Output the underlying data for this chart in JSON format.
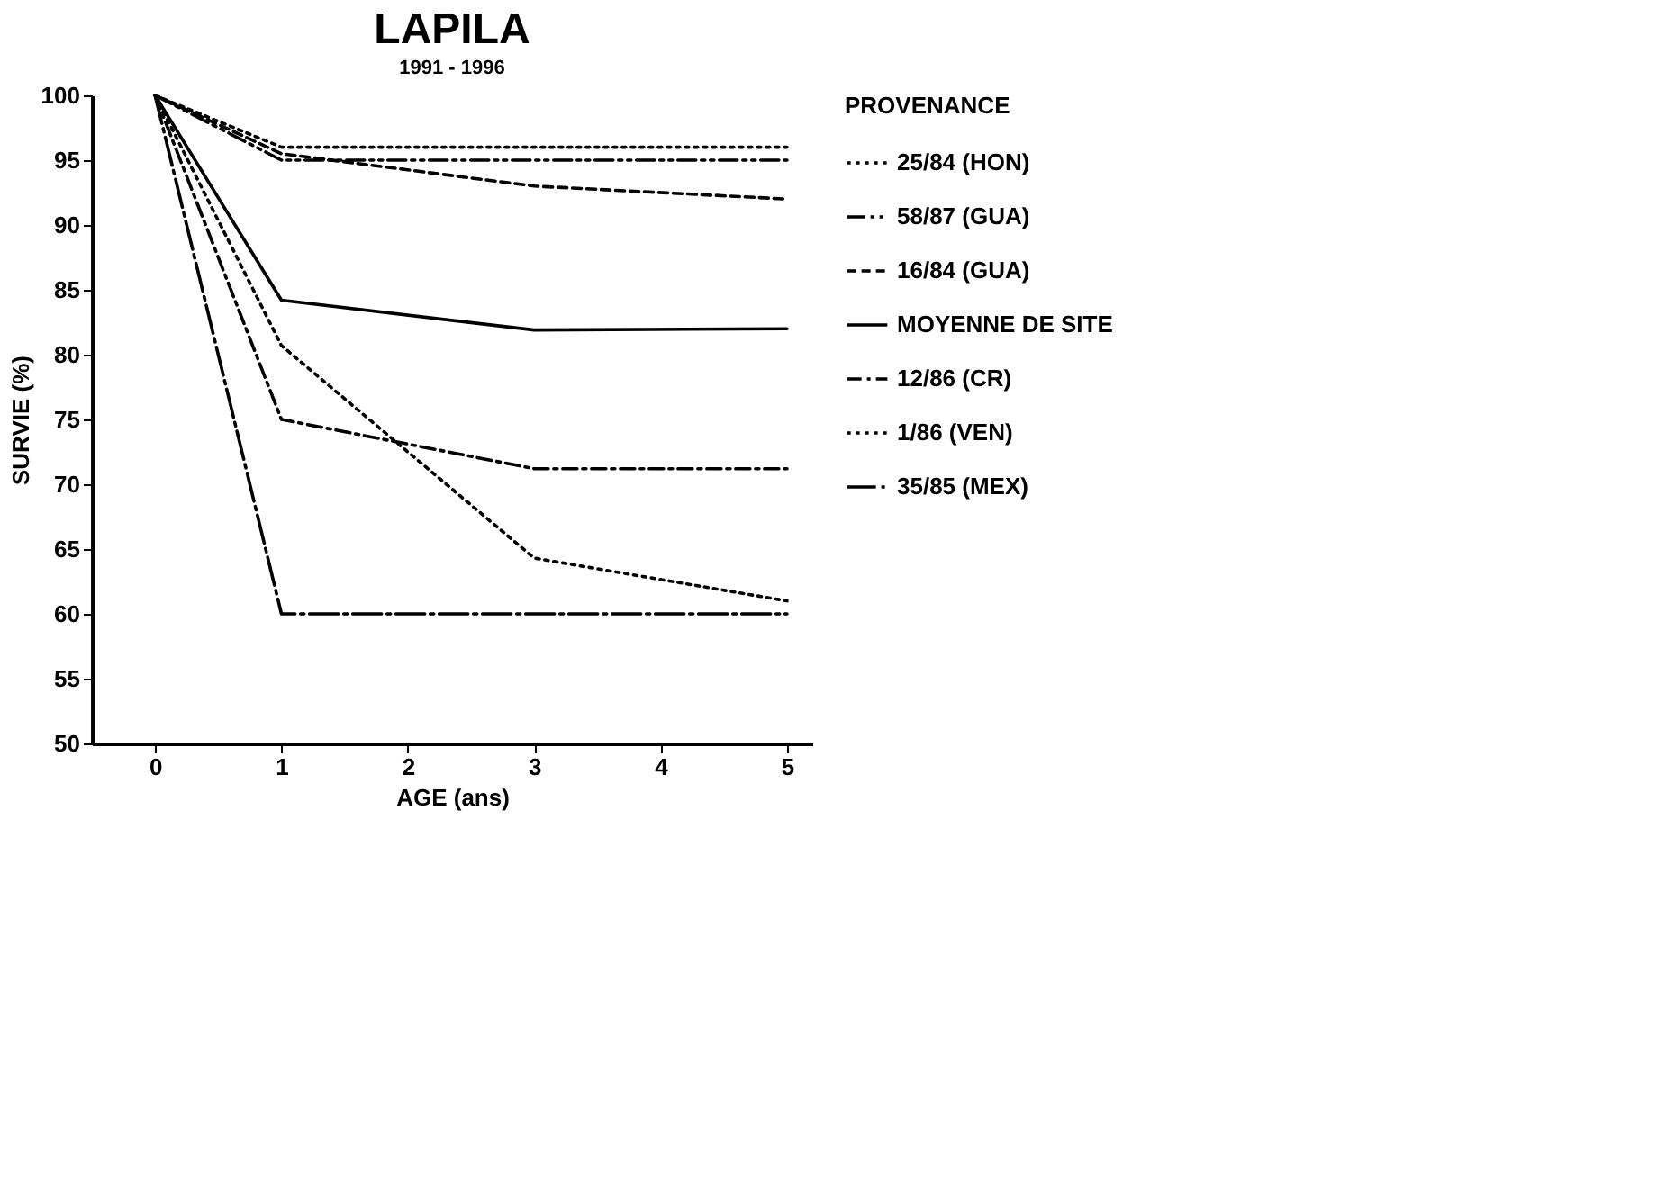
{
  "chart_data": {
    "type": "line",
    "title": "LAPILA",
    "subtitle": "1991 - 1996",
    "xlabel": "AGE (ans)",
    "ylabel": "SURVIE (%)",
    "legend_title": "PROVENANCE",
    "legend": "right",
    "grid": false,
    "marker": "none",
    "x": [
      0,
      1,
      3,
      5
    ],
    "xlim": [
      -0.5,
      5.2
    ],
    "xticks": [
      0,
      1,
      2,
      3,
      4,
      5
    ],
    "ylim": [
      50,
      100
    ],
    "yticks": [
      50,
      55,
      60,
      65,
      70,
      75,
      80,
      85,
      90,
      95,
      100
    ],
    "series": [
      {
        "name": "25/84 (HON)",
        "color": "#000000",
        "line_style": "dotted",
        "values": [
          100,
          96,
          96,
          96
        ]
      },
      {
        "name": "58/87 (GUA)",
        "color": "#000000",
        "line_style": "dashdotdot",
        "values": [
          100,
          95,
          95,
          95
        ]
      },
      {
        "name": "16/84 (GUA)",
        "color": "#000000",
        "line_style": "dashed",
        "values": [
          100,
          95.5,
          93,
          92
        ]
      },
      {
        "name": "MOYENNE DE SITE",
        "color": "#000000",
        "line_style": "solid",
        "values": [
          100,
          84.2,
          81.9,
          82
        ]
      },
      {
        "name": "12/86 (CR)",
        "color": "#000000",
        "line_style": "dashdot",
        "values": [
          100,
          75,
          71.2,
          71.2
        ]
      },
      {
        "name": "1/86 (VEN)",
        "color": "#000000",
        "line_style": "dotted",
        "values": [
          100,
          80.7,
          64.3,
          61
        ]
      },
      {
        "name": "35/85 (MEX)",
        "color": "#000000",
        "line_style": "longdashdot",
        "values": [
          100,
          60,
          60,
          60
        ]
      }
    ]
  }
}
